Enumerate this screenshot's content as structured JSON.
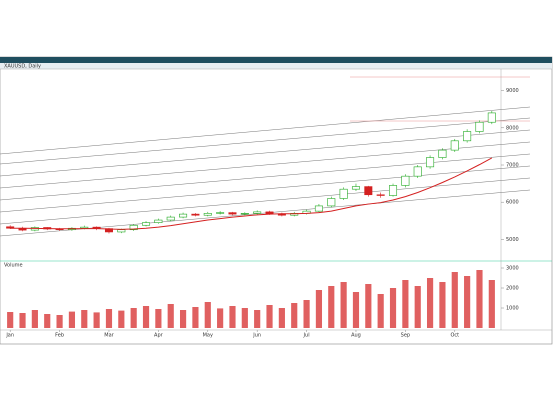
{
  "chart_data": {
    "type": "candlestick",
    "title": "XAUUSD, Daily",
    "categories": [
      "Jan",
      null,
      null,
      null,
      "Feb",
      null,
      null,
      null,
      "Mar",
      null,
      null,
      null,
      "Apr",
      null,
      null,
      null,
      "May",
      null,
      null,
      null,
      "Jun",
      null,
      null,
      null,
      "Jul",
      null,
      null,
      null,
      "Aug",
      null,
      null,
      null,
      "Sep",
      null,
      null,
      null,
      "Oct",
      null,
      null,
      null
    ],
    "open": [
      5340,
      5300,
      5250,
      5320,
      5280,
      5260,
      5300,
      5330,
      5290,
      5200,
      5260,
      5380,
      5450,
      5520,
      5600,
      5680,
      5650,
      5700,
      5720,
      5680,
      5700,
      5740,
      5690,
      5650,
      5700,
      5760,
      5900,
      6100,
      6350,
      6420,
      6200,
      6180,
      6450,
      6700,
      6950,
      7200,
      7400,
      7650,
      7900,
      8150
    ],
    "high": [
      5380,
      5340,
      5350,
      5330,
      5310,
      5330,
      5370,
      5350,
      5310,
      5290,
      5410,
      5490,
      5560,
      5640,
      5720,
      5710,
      5740,
      5760,
      5740,
      5730,
      5780,
      5770,
      5720,
      5740,
      5800,
      5950,
      6150,
      6400,
      6500,
      6440,
      6260,
      6500,
      6750,
      7000,
      7260,
      7450,
      7700,
      7960,
      8200,
      8450
    ],
    "low": [
      5280,
      5220,
      5220,
      5250,
      5230,
      5230,
      5270,
      5250,
      5160,
      5170,
      5230,
      5350,
      5420,
      5490,
      5570,
      5620,
      5620,
      5670,
      5650,
      5650,
      5670,
      5660,
      5620,
      5620,
      5670,
      5730,
      5860,
      6060,
      6300,
      6150,
      6120,
      6150,
      6400,
      6650,
      6900,
      7150,
      7350,
      7600,
      7850,
      8100
    ],
    "close": [
      5300,
      5250,
      5320,
      5280,
      5260,
      5300,
      5330,
      5290,
      5200,
      5260,
      5380,
      5450,
      5520,
      5600,
      5680,
      5650,
      5700,
      5720,
      5680,
      5700,
      5740,
      5690,
      5650,
      5700,
      5760,
      5900,
      6100,
      6350,
      6420,
      6200,
      6180,
      6450,
      6700,
      6950,
      7200,
      7400,
      7650,
      7900,
      8150,
      8400
    ],
    "up_color": "#22aa22",
    "down_color": "#d42020",
    "moving_average": {
      "color": "#d42020",
      "values": [
        5300,
        5300,
        5295,
        5290,
        5285,
        5285,
        5290,
        5290,
        5280,
        5270,
        5280,
        5300,
        5330,
        5370,
        5420,
        5470,
        5520,
        5560,
        5600,
        5630,
        5660,
        5680,
        5690,
        5690,
        5700,
        5720,
        5760,
        5830,
        5900,
        5950,
        5990,
        6060,
        6150,
        6260,
        6390,
        6530,
        6680,
        6840,
        7010,
        7190
      ]
    },
    "ylim": [
      4500,
      9500
    ],
    "yticks": [
      5000,
      6000,
      7000,
      8000,
      9000
    ],
    "volume": {
      "name": "Volume",
      "color": "#e06060",
      "values": [
        800,
        750,
        900,
        700,
        650,
        820,
        900,
        780,
        950,
        870,
        1000,
        1100,
        950,
        1200,
        900,
        1050,
        1300,
        980,
        1100,
        1000,
        900,
        1150,
        1000,
        1250,
        1400,
        1900,
        2100,
        2300,
        1800,
        2200,
        1700,
        2000,
        2400,
        2100,
        2500,
        2300,
        2800,
        2600,
        2900,
        2400
      ],
      "ylim": [
        0,
        3000
      ],
      "yticks": [
        1000,
        2000,
        3000
      ]
    }
  }
}
